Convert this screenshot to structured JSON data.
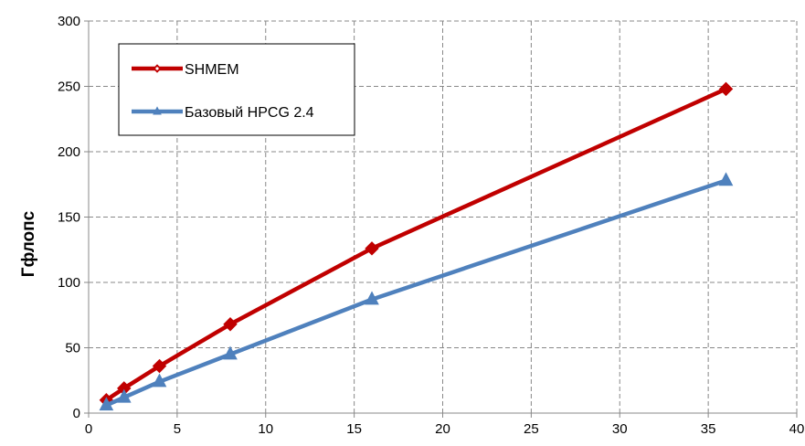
{
  "chart_data": {
    "type": "line",
    "title": "",
    "xlabel": "",
    "ylabel": "Гфлопс",
    "xlim": [
      0,
      40
    ],
    "ylim": [
      0,
      300
    ],
    "xticks": [
      0,
      5,
      10,
      15,
      20,
      25,
      30,
      35,
      40
    ],
    "yticks": [
      0,
      50,
      100,
      150,
      200,
      250,
      300
    ],
    "grid": true,
    "legend_position": "top-left",
    "series": [
      {
        "name": "SHMEM",
        "color": "#C00000",
        "marker": "diamond",
        "x": [
          1,
          2,
          4,
          8,
          16,
          36
        ],
        "y": [
          10,
          19,
          36,
          68,
          126,
          248
        ]
      },
      {
        "name": "Базовый HPCG 2.4",
        "color": "#4F81BD",
        "marker": "triangle",
        "x": [
          1,
          2,
          4,
          8,
          16,
          36
        ],
        "y": [
          6,
          12,
          24,
          45,
          87,
          178
        ]
      }
    ]
  }
}
